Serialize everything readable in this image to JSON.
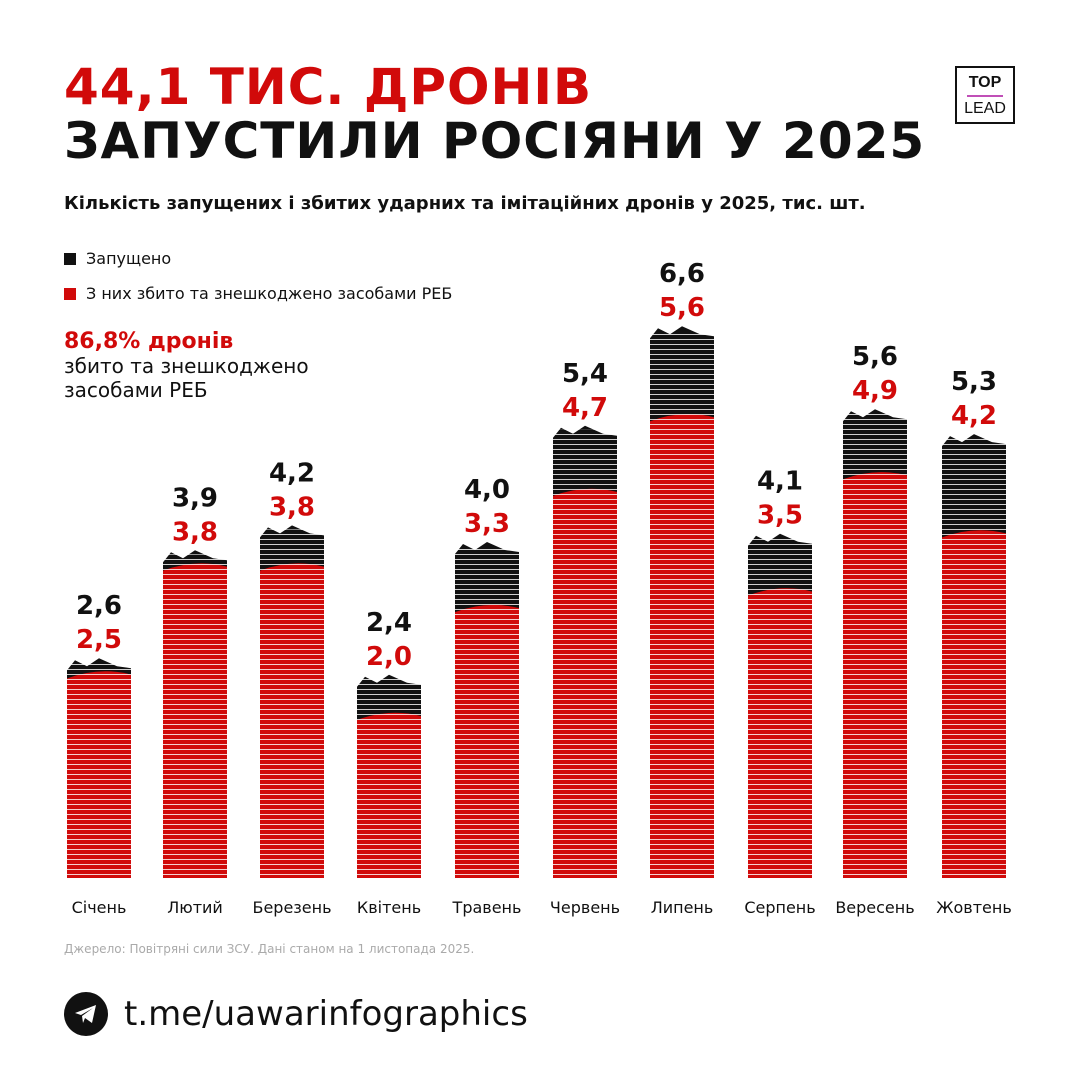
{
  "title_line1": "44,1 ТИС. ДРОНІВ",
  "title_line2": "ЗАПУСТИЛИ РОСІЯНИ У 2025",
  "logo": {
    "top": "TOP",
    "bottom": "LEAD"
  },
  "colors": {
    "accent": "#d10a0a",
    "dark": "#111111"
  },
  "chart_data": {
    "type": "bar",
    "title": "Кількість запущених і збитих ударних та імітаційних дронів у 2025, тис. шт.",
    "categories": [
      "Січень",
      "Лютий",
      "Березень",
      "Квітень",
      "Травень",
      "Червень",
      "Липень",
      "Серпень",
      "Вересень",
      "Жовтень"
    ],
    "series": [
      {
        "name": "Запущено",
        "color": "#111111",
        "values": [
          2.6,
          3.9,
          4.2,
          2.4,
          4.0,
          5.4,
          6.6,
          4.1,
          5.6,
          5.3
        ],
        "labels": [
          "2,6",
          "3,9",
          "4,2",
          "2,4",
          "4,0",
          "5,4",
          "6,6",
          "4,1",
          "5,6",
          "5,3"
        ]
      },
      {
        "name": "З них збито та знешкоджено засобами РЕБ",
        "color": "#d10a0a",
        "values": [
          2.5,
          3.8,
          3.8,
          2.0,
          3.3,
          4.7,
          5.6,
          3.5,
          4.9,
          4.2
        ],
        "labels": [
          "2,5",
          "3,8",
          "3,8",
          "2,0",
          "3,3",
          "4,7",
          "5,6",
          "3,5",
          "4,9",
          "4,2"
        ]
      }
    ],
    "legend": "top-left",
    "grid": false
  },
  "note": {
    "big": "86,8% дронів",
    "line1": "збито та знешкоджено",
    "line2": "засобами РЕБ"
  },
  "source": "Джерело: Повітряні сили ЗСУ. Дані станом на 1 листопада 2025.",
  "telegram": "t.me/uawarinfographics"
}
